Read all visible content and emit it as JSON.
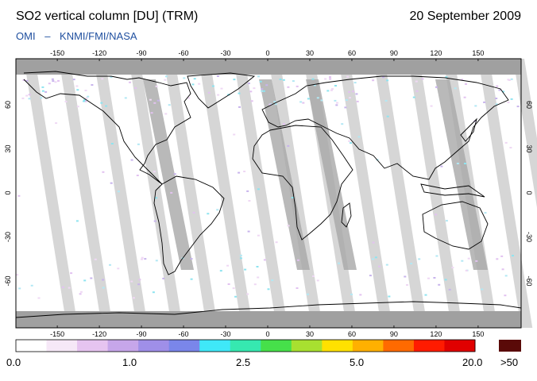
{
  "header": {
    "title": "SO2 vertical column [DU] (TRM)",
    "date": "20 September 2009",
    "credit_left": "OMI",
    "credit_sep": "–",
    "credit_right": "KNMI/FMI/NASA",
    "credit_color": "#1f4f9f"
  },
  "map": {
    "lon_ticks": [
      "-150",
      "-120",
      "-90",
      "-60",
      "-30",
      "0",
      "30",
      "60",
      "90",
      "120",
      "150"
    ],
    "lat_ticks": [
      "60",
      "30",
      "0",
      "-30",
      "-60"
    ],
    "missing_data_color": "#d4d4d4",
    "polar_cap_color": "#a0a0a0"
  },
  "colorbar": {
    "labels": [
      "0.0",
      "1.0",
      "2.5",
      "5.0",
      "20.0"
    ],
    "overflow_label": ">50",
    "colors": [
      "#ffffff",
      "#f6e8f7",
      "#e6c4f0",
      "#c6a6ea",
      "#9f8fe8",
      "#7a86ea",
      "#3fe8f8",
      "#36e8b0",
      "#46e04a",
      "#a8e030",
      "#ffe100",
      "#ffb000",
      "#ff6a00",
      "#ff1b00",
      "#e00000"
    ],
    "overflow_color": "#5a0a08"
  }
}
